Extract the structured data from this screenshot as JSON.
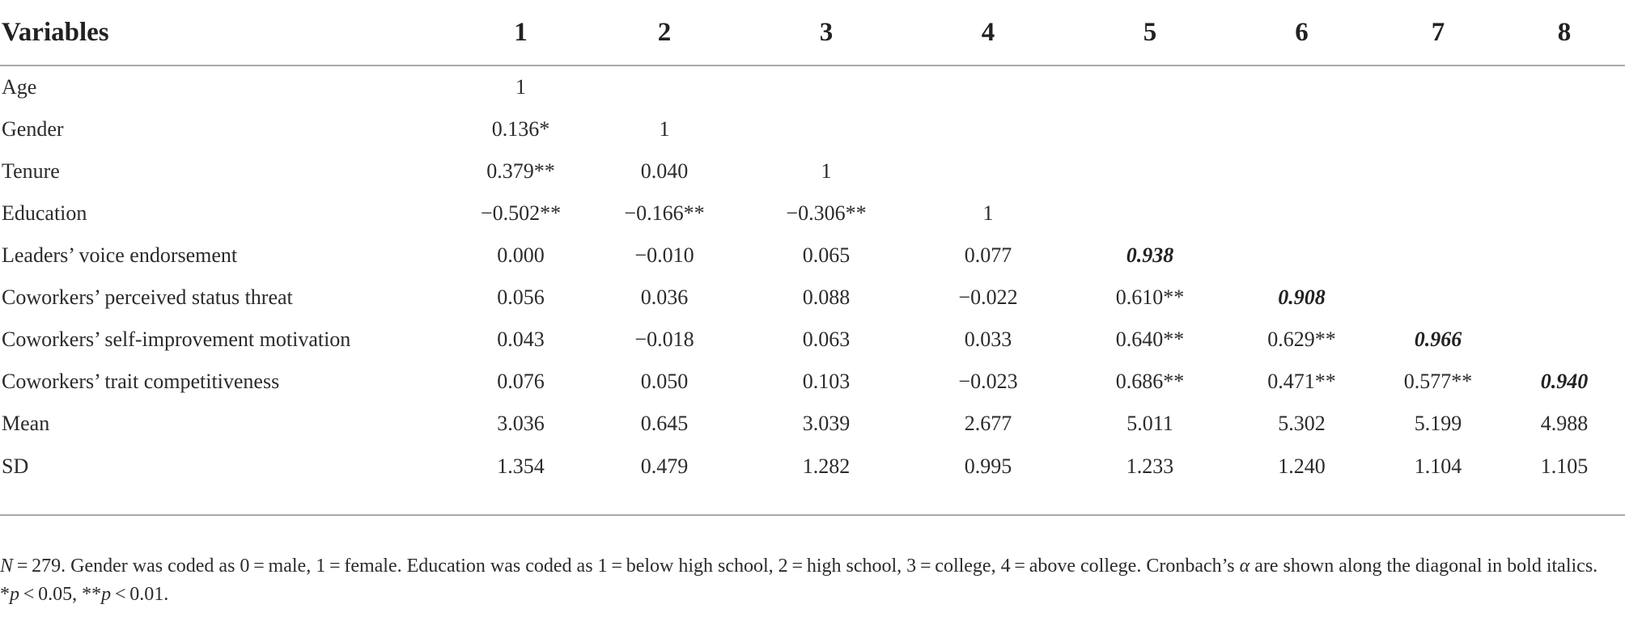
{
  "table": {
    "header": [
      "Variables",
      "1",
      "2",
      "3",
      "4",
      "5",
      "6",
      "7",
      "8"
    ],
    "rows": [
      {
        "variable": "Age",
        "cells": [
          "1",
          "",
          "",
          "",
          "",
          "",
          "",
          ""
        ]
      },
      {
        "variable": "Gender",
        "cells": [
          "0.136*",
          "1",
          "",
          "",
          "",
          "",
          "",
          ""
        ]
      },
      {
        "variable": "Tenure",
        "cells": [
          "0.379**",
          "0.040",
          "1",
          "",
          "",
          "",
          "",
          ""
        ]
      },
      {
        "variable": "Education",
        "cells": [
          "−0.502**",
          "−0.166**",
          "−0.306**",
          "1",
          "",
          "",
          "",
          ""
        ]
      },
      {
        "variable": "Leaders’ voice endorsement",
        "cells": [
          "0.000",
          "−0.010",
          "0.065",
          "0.077",
          "0.938",
          "",
          "",
          ""
        ]
      },
      {
        "variable": "Coworkers’ perceived status threat",
        "cells": [
          "0.056",
          "0.036",
          "0.088",
          "−0.022",
          "0.610**",
          "0.908",
          "",
          ""
        ]
      },
      {
        "variable": "Coworkers’ self-improvement motivation",
        "cells": [
          "0.043",
          "−0.018",
          "0.063",
          "0.033",
          "0.640**",
          "0.629**",
          "0.966",
          ""
        ]
      },
      {
        "variable": "Coworkers’ trait competitiveness",
        "cells": [
          "0.076",
          "0.050",
          "0.103",
          "−0.023",
          "0.686**",
          "0.471**",
          "0.577**",
          "0.940"
        ]
      },
      {
        "variable": "Mean",
        "cells": [
          "3.036",
          "0.645",
          "3.039",
          "2.677",
          "5.011",
          "5.302",
          "5.199",
          "4.988"
        ]
      },
      {
        "variable": "SD",
        "cells": [
          "1.354",
          "0.479",
          "1.282",
          "0.995",
          "1.233",
          "1.240",
          "1.104",
          "1.105"
        ]
      }
    ]
  },
  "note": {
    "n_symbol": "N",
    "n_text": " = 279. Gender was coded as 0 = male, 1 = female. Education was coded as 1 = below high school, 2 = high school, 3 = college, 4 = above college. Cronbach’s ",
    "alpha_symbol": "α",
    "alpha_text": " are shown along the diagonal in bold italics. *",
    "p1_symbol": "p",
    "p1_text": " < 0.05, **",
    "p2_symbol": "p",
    "p2_text": " < 0.01."
  }
}
